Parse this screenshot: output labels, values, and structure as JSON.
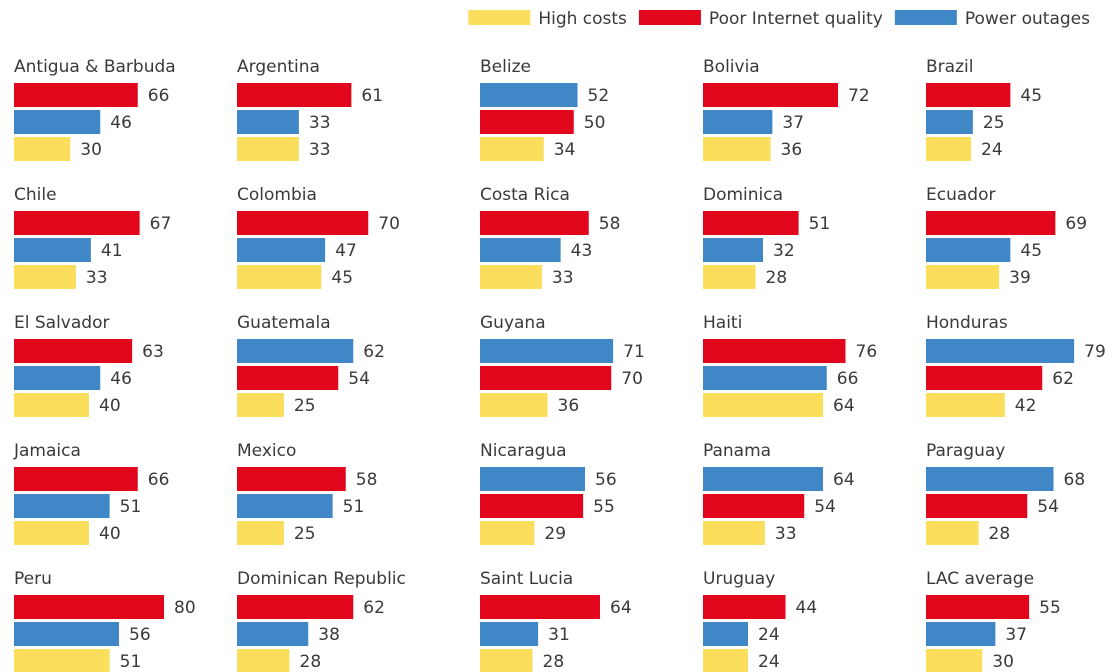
{
  "colors": {
    "high_costs": "#FADE5C",
    "poor_internet": "#E1061C",
    "power_outages": "#3F87C7",
    "text": "#3a3a3a"
  },
  "chart_data": {
    "type": "bar",
    "orientation": "horizontal",
    "legend": {
      "placement": "top-right",
      "entries": [
        {
          "key": "high_costs",
          "label": "High costs"
        },
        {
          "key": "poor_internet",
          "label": "Poor Internet quality"
        },
        {
          "key": "power_outages",
          "label": "Power outages"
        }
      ]
    },
    "grid": false,
    "panels": [
      {
        "title": "Antigua & Barbuda",
        "bars": [
          {
            "series": "poor_internet",
            "value": 66
          },
          {
            "series": "power_outages",
            "value": 46
          },
          {
            "series": "high_costs",
            "value": 30
          }
        ]
      },
      {
        "title": "Argentina",
        "bars": [
          {
            "series": "poor_internet",
            "value": 61
          },
          {
            "series": "power_outages",
            "value": 33
          },
          {
            "series": "high_costs",
            "value": 33
          }
        ]
      },
      {
        "title": "Belize",
        "bars": [
          {
            "series": "power_outages",
            "value": 52
          },
          {
            "series": "poor_internet",
            "value": 50
          },
          {
            "series": "high_costs",
            "value": 34
          }
        ]
      },
      {
        "title": "Bolivia",
        "bars": [
          {
            "series": "poor_internet",
            "value": 72
          },
          {
            "series": "power_outages",
            "value": 37
          },
          {
            "series": "high_costs",
            "value": 36
          }
        ]
      },
      {
        "title": "Brazil",
        "bars": [
          {
            "series": "poor_internet",
            "value": 45
          },
          {
            "series": "power_outages",
            "value": 25
          },
          {
            "series": "high_costs",
            "value": 24
          }
        ]
      },
      {
        "title": "Chile",
        "bars": [
          {
            "series": "poor_internet",
            "value": 67
          },
          {
            "series": "power_outages",
            "value": 41
          },
          {
            "series": "high_costs",
            "value": 33
          }
        ]
      },
      {
        "title": "Colombia",
        "bars": [
          {
            "series": "poor_internet",
            "value": 70
          },
          {
            "series": "power_outages",
            "value": 47
          },
          {
            "series": "high_costs",
            "value": 45
          }
        ]
      },
      {
        "title": "Costa Rica",
        "bars": [
          {
            "series": "poor_internet",
            "value": 58
          },
          {
            "series": "power_outages",
            "value": 43
          },
          {
            "series": "high_costs",
            "value": 33
          }
        ]
      },
      {
        "title": "Dominica",
        "bars": [
          {
            "series": "poor_internet",
            "value": 51
          },
          {
            "series": "power_outages",
            "value": 32
          },
          {
            "series": "high_costs",
            "value": 28
          }
        ]
      },
      {
        "title": "Ecuador",
        "bars": [
          {
            "series": "poor_internet",
            "value": 69
          },
          {
            "series": "power_outages",
            "value": 45
          },
          {
            "series": "high_costs",
            "value": 39
          }
        ]
      },
      {
        "title": "El Salvador",
        "bars": [
          {
            "series": "poor_internet",
            "value": 63
          },
          {
            "series": "power_outages",
            "value": 46
          },
          {
            "series": "high_costs",
            "value": 40
          }
        ]
      },
      {
        "title": "Guatemala",
        "bars": [
          {
            "series": "power_outages",
            "value": 62
          },
          {
            "series": "poor_internet",
            "value": 54
          },
          {
            "series": "high_costs",
            "value": 25
          }
        ]
      },
      {
        "title": "Guyana",
        "bars": [
          {
            "series": "power_outages",
            "value": 71
          },
          {
            "series": "poor_internet",
            "value": 70
          },
          {
            "series": "high_costs",
            "value": 36
          }
        ]
      },
      {
        "title": "Haiti",
        "bars": [
          {
            "series": "poor_internet",
            "value": 76
          },
          {
            "series": "power_outages",
            "value": 66
          },
          {
            "series": "high_costs",
            "value": 64
          }
        ]
      },
      {
        "title": "Honduras",
        "bars": [
          {
            "series": "power_outages",
            "value": 79
          },
          {
            "series": "poor_internet",
            "value": 62
          },
          {
            "series": "high_costs",
            "value": 42
          }
        ]
      },
      {
        "title": "Jamaica",
        "bars": [
          {
            "series": "poor_internet",
            "value": 66
          },
          {
            "series": "power_outages",
            "value": 51
          },
          {
            "series": "high_costs",
            "value": 40
          }
        ]
      },
      {
        "title": "Mexico",
        "bars": [
          {
            "series": "poor_internet",
            "value": 58
          },
          {
            "series": "power_outages",
            "value": 51
          },
          {
            "series": "high_costs",
            "value": 25
          }
        ]
      },
      {
        "title": "Nicaragua",
        "bars": [
          {
            "series": "power_outages",
            "value": 56
          },
          {
            "series": "poor_internet",
            "value": 55
          },
          {
            "series": "high_costs",
            "value": 29
          }
        ]
      },
      {
        "title": "Panama",
        "bars": [
          {
            "series": "power_outages",
            "value": 64
          },
          {
            "series": "poor_internet",
            "value": 54
          },
          {
            "series": "high_costs",
            "value": 33
          }
        ]
      },
      {
        "title": "Paraguay",
        "bars": [
          {
            "series": "power_outages",
            "value": 68
          },
          {
            "series": "poor_internet",
            "value": 54
          },
          {
            "series": "high_costs",
            "value": 28
          }
        ]
      },
      {
        "title": "Peru",
        "bars": [
          {
            "series": "poor_internet",
            "value": 80
          },
          {
            "series": "power_outages",
            "value": 56
          },
          {
            "series": "high_costs",
            "value": 51
          }
        ]
      },
      {
        "title": "Dominican Republic",
        "bars": [
          {
            "series": "poor_internet",
            "value": 62
          },
          {
            "series": "power_outages",
            "value": 38
          },
          {
            "series": "high_costs",
            "value": 28
          }
        ]
      },
      {
        "title": "Saint Lucia",
        "bars": [
          {
            "series": "poor_internet",
            "value": 64
          },
          {
            "series": "power_outages",
            "value": 31
          },
          {
            "series": "high_costs",
            "value": 28
          }
        ]
      },
      {
        "title": "Uruguay",
        "bars": [
          {
            "series": "poor_internet",
            "value": 44
          },
          {
            "series": "power_outages",
            "value": 24
          },
          {
            "series": "high_costs",
            "value": 24
          }
        ]
      },
      {
        "title": "LAC average",
        "bars": [
          {
            "series": "poor_internet",
            "value": 55
          },
          {
            "series": "power_outages",
            "value": 37
          },
          {
            "series": "high_costs",
            "value": 30
          }
        ]
      }
    ]
  }
}
